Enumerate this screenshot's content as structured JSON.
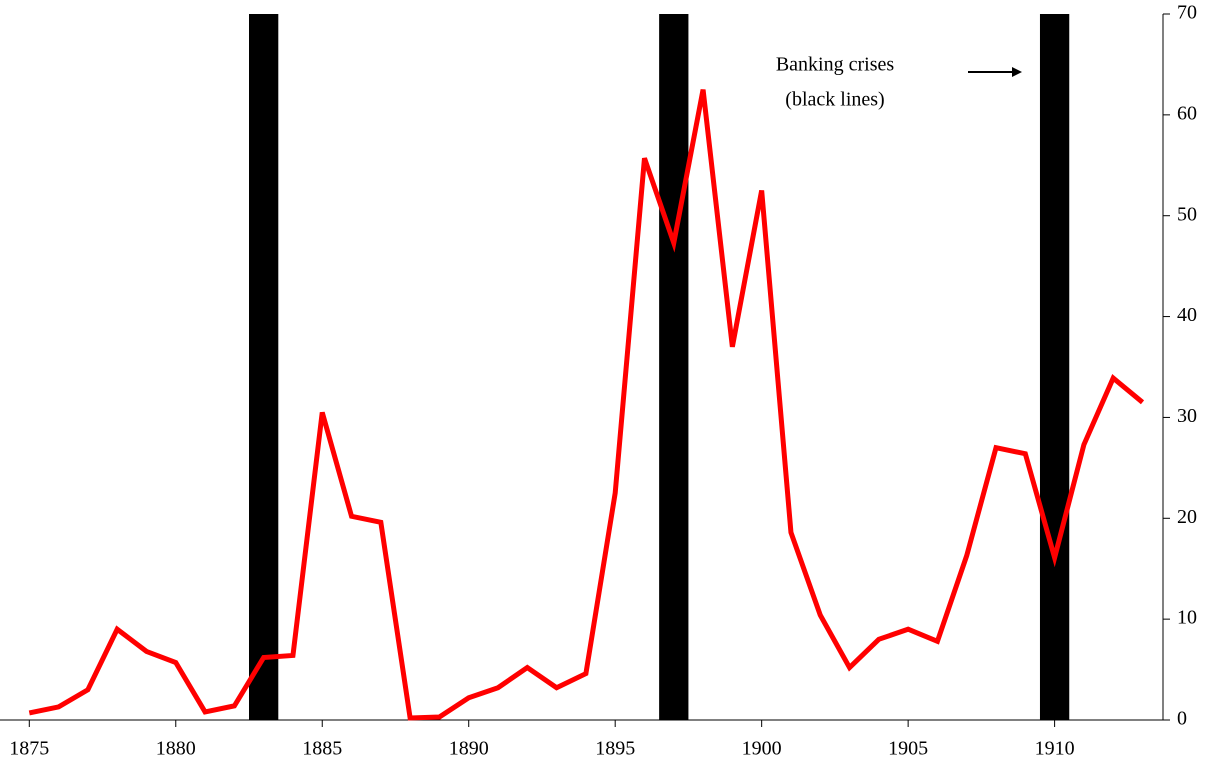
{
  "chart_data": {
    "type": "line",
    "x": [
      1875,
      1876,
      1877,
      1878,
      1879,
      1880,
      1881,
      1882,
      1883,
      1884,
      1885,
      1886,
      1887,
      1888,
      1889,
      1890,
      1891,
      1892,
      1893,
      1894,
      1895,
      1896,
      1897,
      1898,
      1899,
      1900,
      1901,
      1902,
      1903,
      1904,
      1905,
      1906,
      1907,
      1908,
      1909,
      1910,
      1911,
      1912,
      1913
    ],
    "series": [
      {
        "color": "#ff0000",
        "values": [
          0.7,
          1.3,
          3.0,
          9.0,
          6.8,
          5.7,
          0.8,
          1.4,
          6.2,
          6.4,
          30.5,
          20.2,
          19.6,
          0.2,
          0.3,
          2.2,
          3.2,
          5.2,
          3.2,
          4.6,
          22.5,
          55.7,
          47.3,
          62.5,
          37.0,
          52.5,
          18.6,
          10.4,
          5.2,
          8.0,
          9.0,
          7.8,
          16.3,
          27.0,
          26.4,
          16.1,
          27.3,
          33.9,
          31.5
        ]
      }
    ],
    "crises": [
      1883,
      1897,
      1910
    ],
    "crisis_color": "#000000",
    "annotation": [
      "Banking crises",
      "(black lines)"
    ],
    "xlim": [
      1874,
      1913.7
    ],
    "xticks": [
      1875,
      1880,
      1885,
      1890,
      1895,
      1900,
      1905,
      1910
    ],
    "ylim": [
      0,
      70
    ],
    "yticks": [
      0,
      10,
      20,
      30,
      40,
      50,
      60,
      70
    ]
  }
}
